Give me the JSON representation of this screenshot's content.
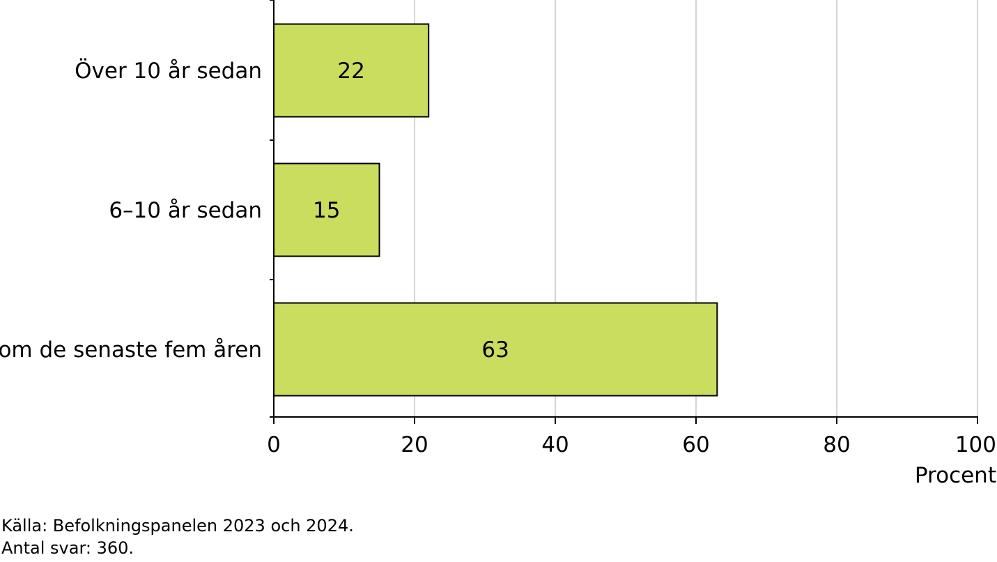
{
  "chart_data": {
    "type": "bar",
    "orientation": "horizontal",
    "categories": [
      "Över 10 år sedan",
      "6–10 år sedan",
      "Inom de senaste fem åren"
    ],
    "values": [
      22,
      15,
      63
    ],
    "data_labels": [
      "22",
      "15",
      "63"
    ],
    "xlabel": "Procent",
    "ylabel": "",
    "xlim": [
      0,
      100
    ],
    "x_ticks": [
      0,
      20,
      40,
      60,
      80,
      100
    ],
    "x_tick_labels": [
      "0",
      "20",
      "40",
      "60",
      "80",
      "100"
    ],
    "grid": "vertical",
    "legend": "none",
    "bar_color": "#cadd5e",
    "bar_edge_color": "#000000",
    "grid_color": "#aaaaaa"
  },
  "notes": {
    "source": "Källa: Befolkningspanelen 2023 och 2024.",
    "responses": "Antal svar: 360."
  }
}
